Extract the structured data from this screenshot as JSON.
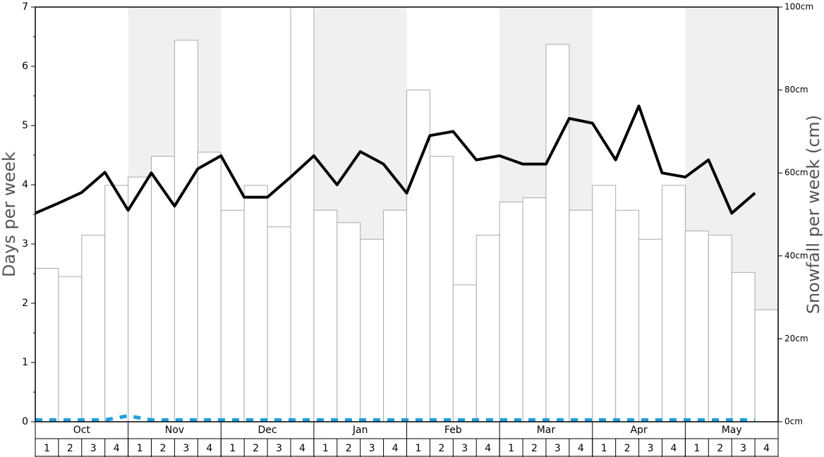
{
  "chart_data": {
    "type": "bar",
    "y_label": "Days per week",
    "y2_label": "Snowfall per week (cm)",
    "months": [
      "Oct",
      "Nov",
      "Dec",
      "Jan",
      "Feb",
      "Mar",
      "Apr",
      "May"
    ],
    "categories": [
      "1",
      "2",
      "3",
      "4",
      "1",
      "2",
      "3",
      "4",
      "1",
      "2",
      "3",
      "4",
      "1",
      "2",
      "3",
      "4",
      "1",
      "2",
      "3",
      "4",
      "1",
      "2",
      "3",
      "4",
      "1",
      "2",
      "3",
      "4",
      "1",
      "2",
      "3",
      "4"
    ],
    "ylim": [
      0,
      7
    ],
    "yticks": [
      0,
      1,
      2,
      3,
      4,
      5,
      6,
      7
    ],
    "y2lim": [
      0,
      100
    ],
    "y2ticks": [
      {
        "value": 0,
        "label": "0cm"
      },
      {
        "value": 20,
        "label": "20cm"
      },
      {
        "value": 40,
        "label": "40cm"
      },
      {
        "value": 60,
        "label": "60cm"
      },
      {
        "value": 80,
        "label": "80cm"
      },
      {
        "value": 100,
        "label": "100cm"
      }
    ],
    "series": [
      {
        "type": "bar",
        "axis": "y2",
        "color": "#ffffff",
        "values": [
          37,
          35,
          45,
          57,
          59,
          64,
          92,
          65,
          51,
          57,
          47,
          100,
          51,
          48,
          44,
          51,
          80,
          64,
          33,
          45,
          53,
          54,
          91,
          51,
          57,
          51,
          44,
          57,
          46,
          45,
          36,
          27
        ]
      },
      {
        "type": "line",
        "color": "#000000",
        "values": [
          3.52,
          3.69,
          3.87,
          4.21,
          3.57,
          4.2,
          3.64,
          4.27,
          4.49,
          3.79,
          3.79,
          4.13,
          4.49,
          4.0,
          4.56,
          4.35,
          3.86,
          4.83,
          4.9,
          4.42,
          4.49,
          4.35,
          4.35,
          5.12,
          5.04,
          4.42,
          5.33,
          4.2,
          4.13,
          4.42,
          3.52,
          3.86
        ]
      },
      {
        "type": "line",
        "dashed": true,
        "color": "#1ba1e2",
        "values": [
          0.03,
          0.03,
          0.03,
          0.03,
          0.1,
          0.03,
          0.03,
          0.03,
          0.03,
          0.03,
          0.03,
          0.03,
          0.03,
          0.03,
          0.03,
          0.03,
          0.03,
          0.03,
          0.03,
          0.03,
          0.03,
          0.03,
          0.03,
          0.03,
          0.03,
          0.03,
          0.03,
          0.03,
          0.03,
          0.03,
          0.03,
          0.03
        ]
      }
    ]
  }
}
